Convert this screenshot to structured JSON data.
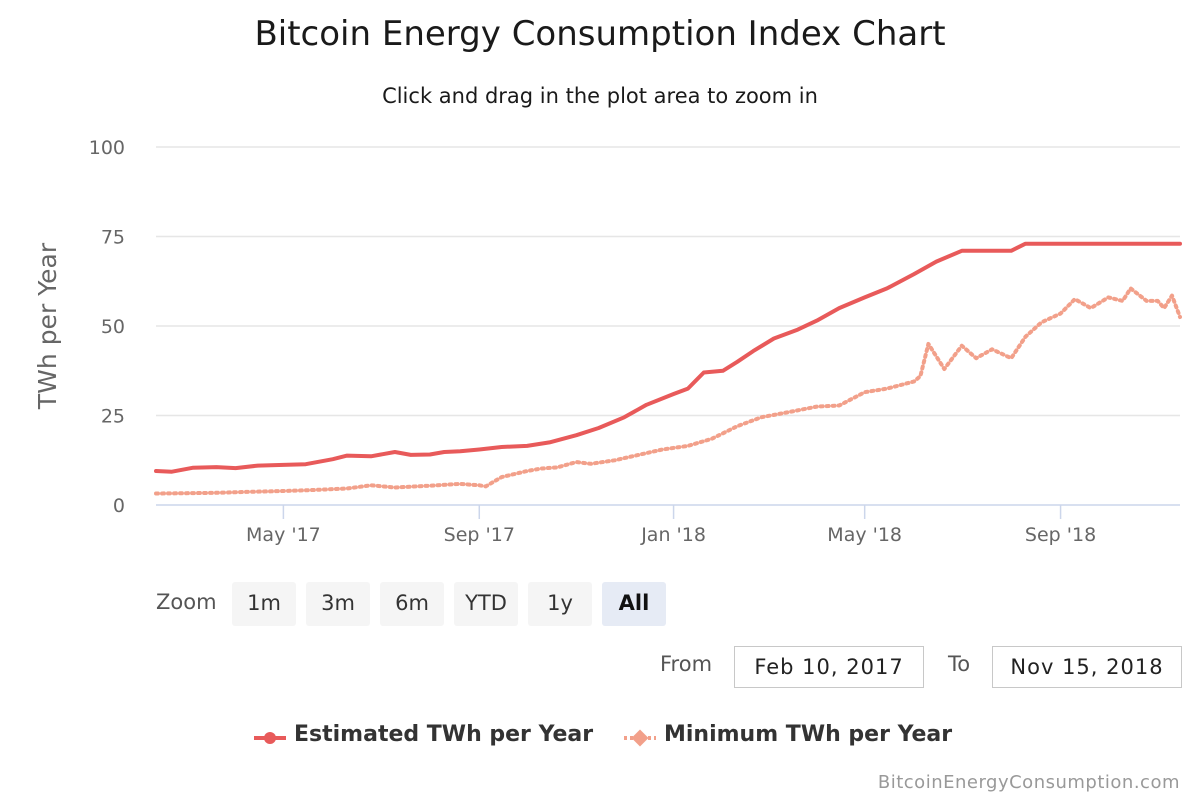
{
  "colors": {
    "estimated": "#e85a5a",
    "minimum": "#f2a08a",
    "grid": "#e6e6e6",
    "axis_line": "#ccd6eb",
    "tick_text": "#666666"
  },
  "range_selector": {
    "zoom_label": "Zoom",
    "buttons": [
      "1m",
      "3m",
      "6m",
      "YTD",
      "1y",
      "All"
    ],
    "active": "All"
  },
  "date_range": {
    "from_label": "From",
    "from_value": "Feb 10, 2017",
    "to_label": "To",
    "to_value": "Nov 15, 2018"
  },
  "credits": "BitcoinEnergyConsumption.com",
  "chart_data": {
    "type": "line",
    "title": "Bitcoin Energy Consumption Index Chart",
    "subtitle": "Click and drag in the plot area to zoom in",
    "xlabel": "",
    "ylabel": "TWh per Year",
    "x_range": [
      "2017-02-10",
      "2018-11-15"
    ],
    "ylim": [
      0,
      100
    ],
    "y_ticks": [
      0,
      25,
      50,
      75,
      100
    ],
    "x_ticks": [
      {
        "label": "May '17",
        "date": "2017-05-01"
      },
      {
        "label": "Sep '17",
        "date": "2017-09-01"
      },
      {
        "label": "Jan '18",
        "date": "2018-01-01"
      },
      {
        "label": "May '18",
        "date": "2018-05-01"
      },
      {
        "label": "Sep '18",
        "date": "2018-09-01"
      }
    ],
    "grid": true,
    "legend_position": "bottom-center",
    "series": [
      {
        "name": "Estimated TWh per Year",
        "style": "solid",
        "points": [
          [
            "2017-02-10",
            9.5
          ],
          [
            "2017-02-20",
            9.3
          ],
          [
            "2017-03-05",
            10.4
          ],
          [
            "2017-03-20",
            10.6
          ],
          [
            "2017-04-01",
            10.3
          ],
          [
            "2017-04-15",
            11.0
          ],
          [
            "2017-05-01",
            11.2
          ],
          [
            "2017-05-15",
            11.4
          ],
          [
            "2017-06-01",
            12.8
          ],
          [
            "2017-06-10",
            13.8
          ],
          [
            "2017-06-25",
            13.6
          ],
          [
            "2017-07-10",
            14.8
          ],
          [
            "2017-07-20",
            14.0
          ],
          [
            "2017-08-01",
            14.1
          ],
          [
            "2017-08-10",
            14.8
          ],
          [
            "2017-08-20",
            15.0
          ],
          [
            "2017-09-01",
            15.5
          ],
          [
            "2017-09-15",
            16.2
          ],
          [
            "2017-10-01",
            16.5
          ],
          [
            "2017-10-15",
            17.5
          ],
          [
            "2017-11-01",
            19.5
          ],
          [
            "2017-11-15",
            21.5
          ],
          [
            "2017-12-01",
            24.5
          ],
          [
            "2017-12-15",
            28.0
          ],
          [
            "2018-01-01",
            31.0
          ],
          [
            "2018-01-10",
            32.5
          ],
          [
            "2018-01-20",
            37.0
          ],
          [
            "2018-02-01",
            37.5
          ],
          [
            "2018-02-10",
            40.0
          ],
          [
            "2018-02-20",
            43.0
          ],
          [
            "2018-03-05",
            46.5
          ],
          [
            "2018-03-20",
            49.0
          ],
          [
            "2018-04-01",
            51.5
          ],
          [
            "2018-04-15",
            55.0
          ],
          [
            "2018-05-01",
            58.0
          ],
          [
            "2018-05-15",
            60.5
          ],
          [
            "2018-06-01",
            64.5
          ],
          [
            "2018-06-15",
            68.0
          ],
          [
            "2018-07-01",
            71.0
          ],
          [
            "2018-07-15",
            71.0
          ],
          [
            "2018-08-01",
            71.0
          ],
          [
            "2018-08-10",
            73.0
          ],
          [
            "2018-09-01",
            73.0
          ],
          [
            "2018-10-01",
            73.0
          ],
          [
            "2018-11-15",
            73.0
          ]
        ]
      },
      {
        "name": "Minimum TWh per Year",
        "style": "dotted",
        "points": [
          [
            "2017-02-10",
            3.2
          ],
          [
            "2017-03-01",
            3.3
          ],
          [
            "2017-03-20",
            3.4
          ],
          [
            "2017-04-10",
            3.7
          ],
          [
            "2017-05-01",
            3.9
          ],
          [
            "2017-05-20",
            4.2
          ],
          [
            "2017-06-10",
            4.6
          ],
          [
            "2017-06-25",
            5.5
          ],
          [
            "2017-07-10",
            4.9
          ],
          [
            "2017-08-01",
            5.4
          ],
          [
            "2017-08-20",
            5.9
          ],
          [
            "2017-09-01",
            5.5
          ],
          [
            "2017-09-05",
            5.2
          ],
          [
            "2017-09-15",
            7.8
          ],
          [
            "2017-10-01",
            9.5
          ],
          [
            "2017-10-10",
            10.2
          ],
          [
            "2017-10-20",
            10.5
          ],
          [
            "2017-11-01",
            12.0
          ],
          [
            "2017-11-10",
            11.5
          ],
          [
            "2017-11-25",
            12.5
          ],
          [
            "2017-12-10",
            14.0
          ],
          [
            "2017-12-25",
            15.5
          ],
          [
            "2018-01-10",
            16.5
          ],
          [
            "2018-01-25",
            18.5
          ],
          [
            "2018-02-10",
            22.0
          ],
          [
            "2018-02-25",
            24.5
          ],
          [
            "2018-03-15",
            26.0
          ],
          [
            "2018-04-01",
            27.5
          ],
          [
            "2018-04-15",
            27.8
          ],
          [
            "2018-05-01",
            31.5
          ],
          [
            "2018-05-15",
            32.5
          ],
          [
            "2018-06-01",
            34.5
          ],
          [
            "2018-06-05",
            36.0
          ],
          [
            "2018-06-10",
            45.0
          ],
          [
            "2018-06-20",
            38.0
          ],
          [
            "2018-07-01",
            44.5
          ],
          [
            "2018-07-10",
            41.0
          ],
          [
            "2018-07-20",
            43.5
          ],
          [
            "2018-08-01",
            41.0
          ],
          [
            "2018-08-10",
            47.0
          ],
          [
            "2018-08-20",
            51.0
          ],
          [
            "2018-09-01",
            53.5
          ],
          [
            "2018-09-10",
            57.5
          ],
          [
            "2018-09-20",
            55.0
          ],
          [
            "2018-10-01",
            58.0
          ],
          [
            "2018-10-10",
            57.0
          ],
          [
            "2018-10-15",
            60.5
          ],
          [
            "2018-10-25",
            57.0
          ],
          [
            "2018-11-01",
            57.0
          ],
          [
            "2018-11-05",
            55.0
          ],
          [
            "2018-11-10",
            58.5
          ],
          [
            "2018-11-15",
            52.5
          ]
        ]
      }
    ]
  }
}
